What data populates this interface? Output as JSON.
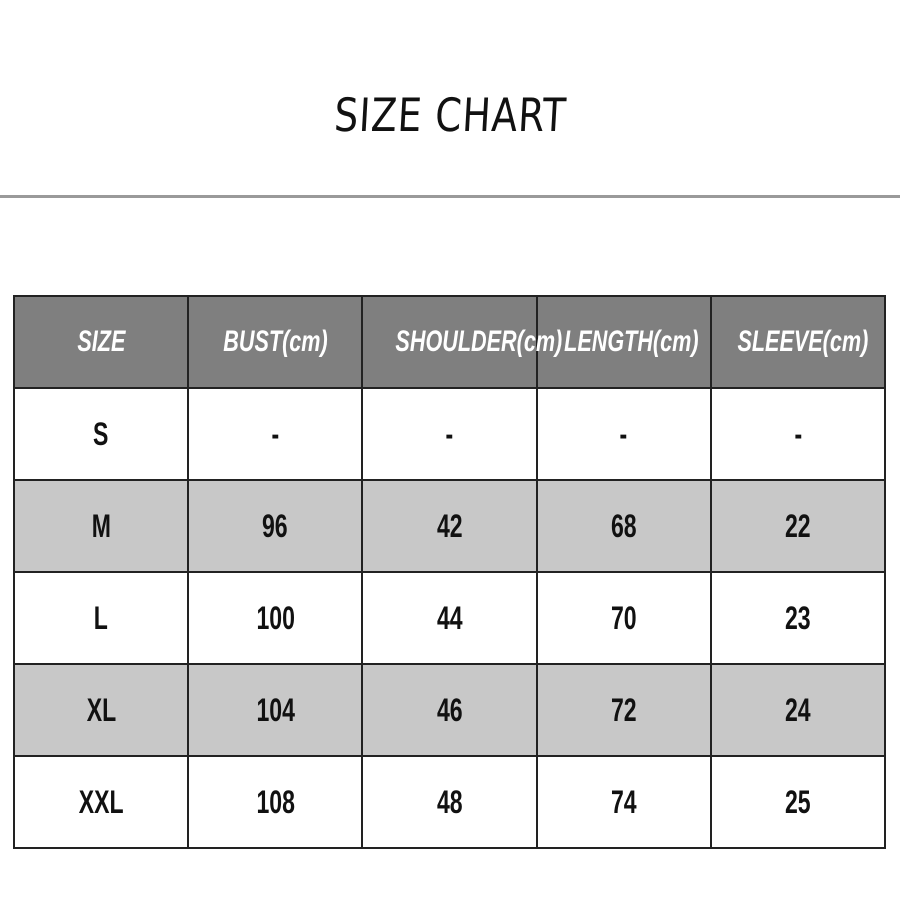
{
  "title": "SIZE CHART",
  "colors": {
    "header_bg": "#7f7f7f",
    "alt_row_bg": "#c8c8c8",
    "rule": "#9a9a9a"
  },
  "table": {
    "headers": [
      "SIZE",
      "BUST(cm)",
      "SHOULDER(cm)",
      "LENGTH(cm)",
      "SLEEVE(cm)"
    ],
    "rows": [
      [
        "S",
        "-",
        "-",
        "-",
        "-"
      ],
      [
        "M",
        "96",
        "42",
        "68",
        "22"
      ],
      [
        "L",
        "100",
        "44",
        "70",
        "23"
      ],
      [
        "XL",
        "104",
        "46",
        "72",
        "24"
      ],
      [
        "XXL",
        "108",
        "48",
        "74",
        "25"
      ]
    ]
  }
}
